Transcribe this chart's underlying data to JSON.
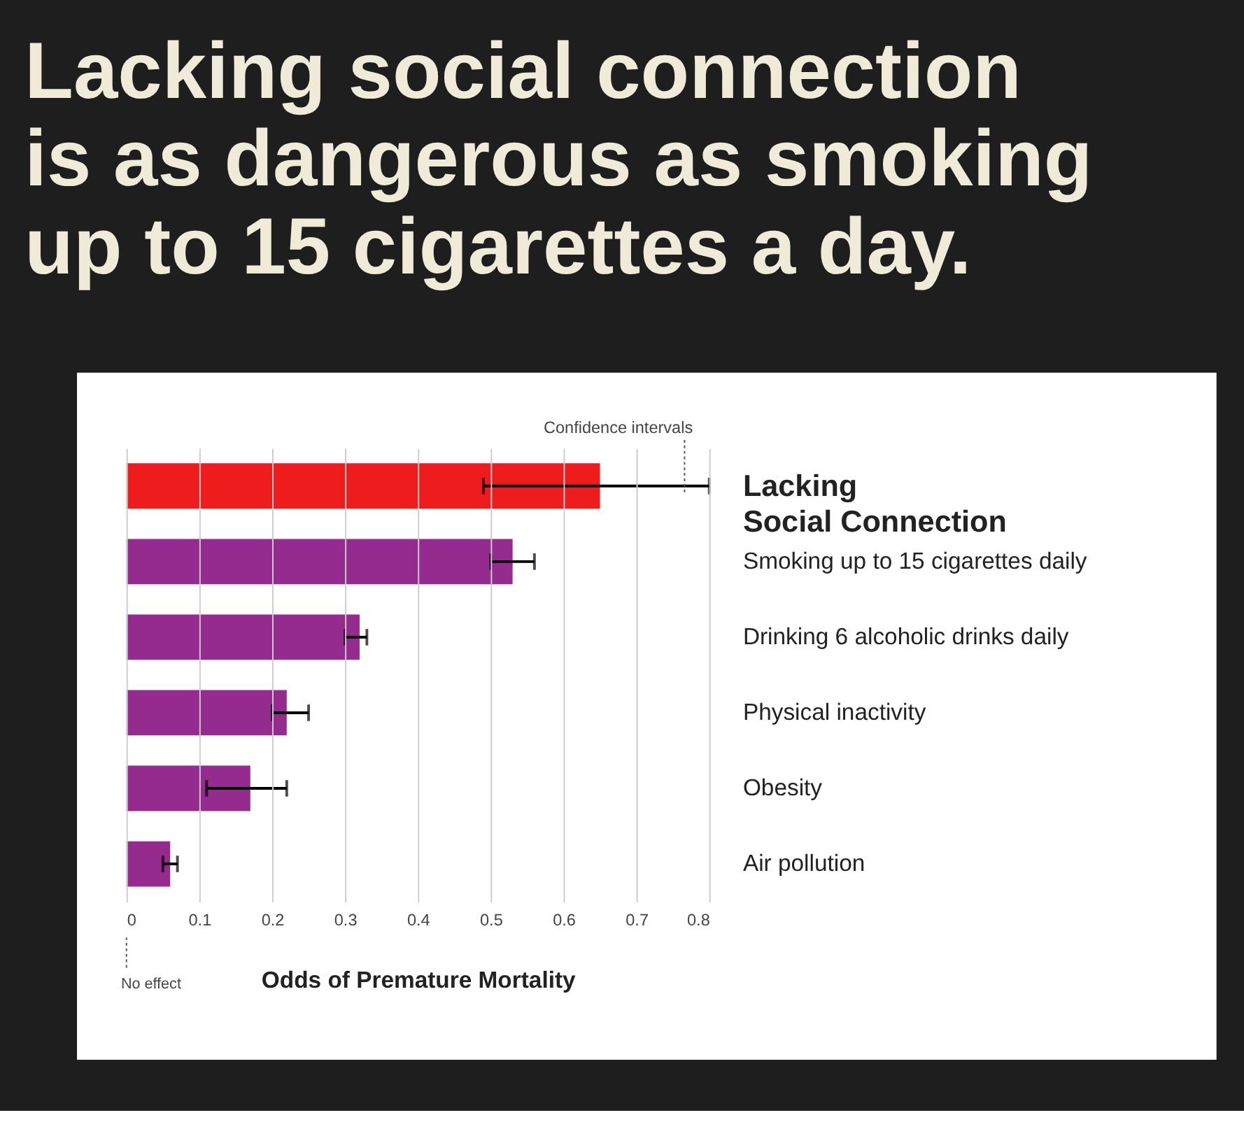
{
  "chart_data": {
    "type": "bar",
    "orientation": "horizontal",
    "title": [
      "Lacking social connection",
      "is as dangerous as smoking",
      "up to 15 cigarettes a day."
    ],
    "xlabel": "Odds of Premature Mortality",
    "categories": [
      "Lacking\nSocial Connection",
      "Smoking up to 15 cigarettes daily",
      "Drinking 6 alcoholic drinks daily",
      "Physical inactivity",
      "Obesity",
      "Air pollution"
    ],
    "values": [
      0.65,
      0.53,
      0.32,
      0.22,
      0.17,
      0.06
    ],
    "colors": [
      "#ee1c1c",
      "#952b8f",
      "#952b8f",
      "#952b8f",
      "#952b8f",
      "#952b8f"
    ],
    "errors": [
      [
        0.49,
        0.8
      ],
      [
        0.5,
        0.56
      ],
      [
        0.3,
        0.33
      ],
      [
        0.2,
        0.25
      ],
      [
        0.11,
        0.22
      ],
      [
        0.05,
        0.07
      ]
    ],
    "xlim": [
      0,
      0.8
    ],
    "xticks": [
      0,
      0.1,
      0.2,
      0.3,
      0.4,
      0.5,
      0.6,
      0.7,
      0.8
    ],
    "grid": "x",
    "legend": false,
    "annotations": [
      "Confidence intervals",
      "No effect"
    ]
  }
}
